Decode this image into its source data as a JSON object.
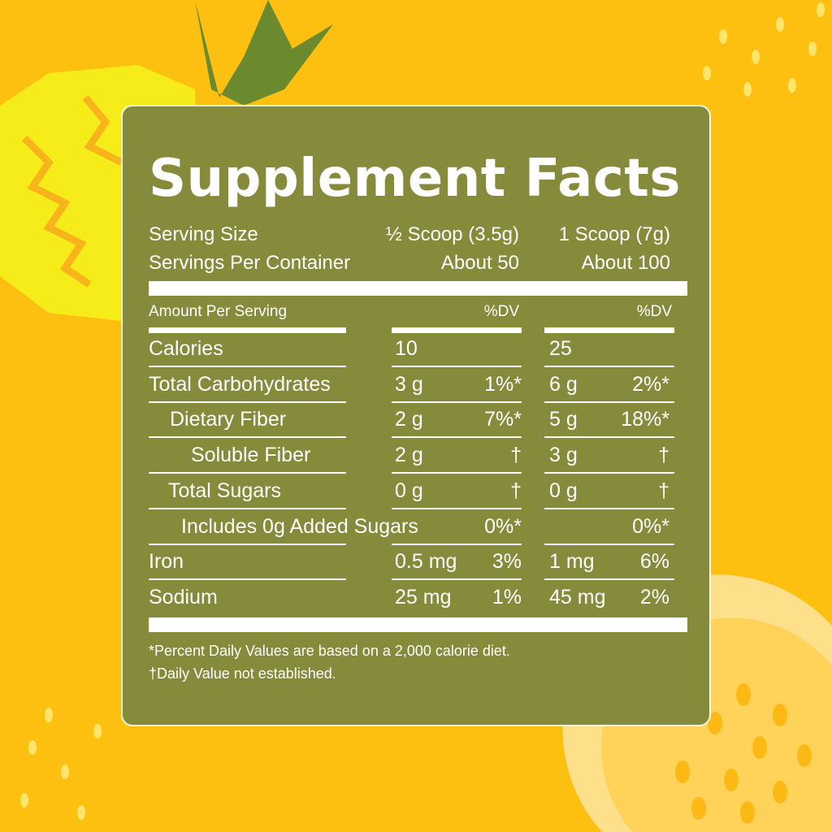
{
  "colors": {
    "background": "#FDC010",
    "panel": "#868B3B",
    "text": "#FFFFFF"
  },
  "title": "Supplement Facts",
  "serving": {
    "size_label": "Serving Size",
    "size_half": "½ Scoop (3.5g)",
    "size_full": "1 Scoop (7g)",
    "per_container_label": "Servings Per Container",
    "per_container_half": "About 50",
    "per_container_full": "About 100"
  },
  "header": {
    "amount_label": "Amount Per Serving",
    "dv_half": "%DV",
    "dv_full": "%DV"
  },
  "rows": [
    {
      "label": "Calories",
      "amt1": "10",
      "dv1": "",
      "amt2": "25",
      "dv2": ""
    },
    {
      "label": "Total Carbohydrates",
      "amt1": "3 g",
      "dv1": "1%*",
      "amt2": "6 g",
      "dv2": "2%*"
    },
    {
      "label": "Dietary Fiber",
      "amt1": "2 g",
      "dv1": "7%*",
      "amt2": "5 g",
      "dv2": "18%*"
    },
    {
      "label": "Soluble Fiber",
      "amt1": "2 g",
      "dv1": "†",
      "amt2": "3 g",
      "dv2": "†"
    },
    {
      "label": "Total Sugars",
      "amt1": "0 g",
      "dv1": "†",
      "amt2": "0 g",
      "dv2": "†"
    },
    {
      "label": "Includes 0g Added Sugars",
      "amt1": "",
      "dv1": "0%*",
      "amt2": "",
      "dv2": "0%*"
    },
    {
      "label": "Iron",
      "amt1": "0.5 mg",
      "dv1": "3%",
      "amt2": "1 mg",
      "dv2": "6%"
    },
    {
      "label": "Sodium",
      "amt1": "25 mg",
      "dv1": "1%",
      "amt2": "45 mg",
      "dv2": "2%"
    }
  ],
  "footnotes": [
    "*Percent Daily Values are based on a 2,000 calorie diet.",
    "†Daily Value not established."
  ]
}
